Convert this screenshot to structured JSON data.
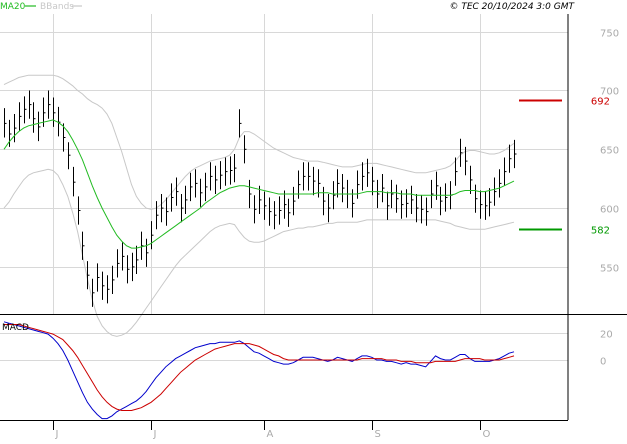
{
  "header": {
    "legend_ma": "MA20",
    "legend_bb": "BBands",
    "copyright": "© TEC 20/10/2024 3:0 GMT"
  },
  "colors": {
    "background": "#ffffff",
    "grid": "#d8d8d8",
    "frame": "#000000",
    "candle": "#000000",
    "ma20": "#22bb22",
    "bbands": "#c8c8c8",
    "resistance": "#cc0000",
    "support": "#009900",
    "macd_line": "#0000cc",
    "signal_line": "#cc0000",
    "axis_text": "#aaaaaa"
  },
  "chart_data": [
    {
      "type": "candlestick",
      "panel": "price",
      "y_ticks": [
        550,
        600,
        650,
        700,
        750
      ],
      "ylim": [
        510,
        765
      ],
      "grid": true,
      "x_labels": [
        {
          "label": "J",
          "index": 10
        },
        {
          "label": "J",
          "index": 30
        },
        {
          "label": "A",
          "index": 53
        },
        {
          "label": "S",
          "index": 75
        },
        {
          "label": "O",
          "index": 97
        }
      ],
      "close": [
        672,
        663,
        668,
        678,
        684,
        688,
        676,
        669,
        681,
        688,
        681,
        673,
        660,
        645,
        622,
        598,
        568,
        543,
        528,
        541,
        534,
        531,
        539,
        553,
        559,
        548,
        550,
        556,
        568,
        562,
        577,
        594,
        600,
        597,
        609,
        614,
        600,
        607,
        618,
        621,
        613,
        618,
        627,
        624,
        628,
        631,
        632,
        634,
        672,
        650,
        612,
        599,
        607,
        602,
        597,
        594,
        598,
        603,
        596,
        606,
        620,
        627,
        627,
        623,
        621,
        606,
        600,
        611,
        621,
        617,
        612,
        604,
        620,
        627,
        630,
        623,
        612,
        617,
        602,
        612,
        608,
        603,
        604,
        607,
        600,
        599,
        597,
        612,
        619,
        606,
        609,
        611,
        631,
        647,
        640,
        624,
        608,
        603,
        602,
        605,
        614,
        621,
        631,
        642,
        646
      ],
      "high": [
        685,
        675,
        680,
        690,
        695,
        700,
        690,
        682,
        694,
        700,
        694,
        686,
        672,
        656,
        635,
        610,
        580,
        555,
        540,
        553,
        546,
        543,
        551,
        565,
        571,
        560,
        562,
        568,
        580,
        574,
        589,
        606,
        612,
        609,
        621,
        626,
        612,
        619,
        630,
        633,
        625,
        630,
        639,
        636,
        640,
        643,
        644,
        646,
        684,
        662,
        624,
        611,
        619,
        614,
        609,
        606,
        610,
        615,
        608,
        618,
        632,
        639,
        639,
        635,
        633,
        618,
        612,
        623,
        633,
        629,
        624,
        616,
        632,
        639,
        642,
        635,
        624,
        629,
        614,
        624,
        620,
        615,
        616,
        619,
        612,
        611,
        609,
        624,
        631,
        618,
        621,
        623,
        643,
        659,
        652,
        636,
        620,
        615,
        614,
        617,
        626,
        633,
        643,
        654,
        658
      ],
      "low": [
        660,
        652,
        656,
        666,
        672,
        676,
        664,
        657,
        669,
        676,
        669,
        661,
        648,
        633,
        610,
        586,
        556,
        531,
        516,
        529,
        522,
        519,
        527,
        541,
        547,
        536,
        538,
        544,
        556,
        550,
        565,
        582,
        588,
        585,
        597,
        602,
        588,
        595,
        606,
        609,
        601,
        606,
        615,
        612,
        616,
        619,
        620,
        622,
        660,
        638,
        600,
        587,
        595,
        590,
        585,
        582,
        586,
        591,
        584,
        594,
        608,
        615,
        615,
        611,
        609,
        594,
        588,
        599,
        609,
        605,
        600,
        592,
        608,
        615,
        618,
        611,
        600,
        605,
        590,
        600,
        596,
        591,
        592,
        595,
        588,
        587,
        585,
        600,
        607,
        594,
        597,
        599,
        619,
        635,
        628,
        612,
        596,
        591,
        590,
        593,
        602,
        609,
        619,
        630,
        634
      ],
      "ma20": [
        650,
        656,
        661,
        665,
        668,
        670,
        671,
        672,
        673,
        674,
        675,
        673,
        670,
        665,
        658,
        650,
        641,
        630,
        619,
        609,
        600,
        592,
        584,
        577,
        572,
        568,
        566,
        566,
        567,
        568,
        570,
        573,
        576,
        579,
        582,
        585,
        588,
        591,
        594,
        597,
        600,
        604,
        607,
        610,
        613,
        615,
        617,
        618,
        619,
        619,
        618,
        617,
        616,
        615,
        614,
        613,
        612,
        612,
        612,
        612,
        612,
        612,
        612,
        612,
        613,
        613,
        613,
        612,
        612,
        612,
        612,
        612,
        612,
        613,
        614,
        614,
        614,
        614,
        613,
        613,
        613,
        612,
        612,
        612,
        611,
        611,
        611,
        611,
        611,
        611,
        611,
        611,
        612,
        614,
        615,
        615,
        615,
        614,
        614,
        615,
        616,
        617,
        619,
        621,
        623
      ],
      "bb_upper": [
        705,
        707,
        709,
        711,
        712,
        713,
        713,
        713,
        713,
        713,
        713,
        712,
        710,
        707,
        704,
        700,
        697,
        693,
        690,
        688,
        685,
        680,
        672,
        660,
        648,
        634,
        620,
        610,
        604,
        600,
        599,
        600,
        603,
        607,
        612,
        617,
        622,
        627,
        631,
        634,
        636,
        638,
        640,
        641,
        642,
        643,
        645,
        650,
        660,
        665,
        665,
        663,
        660,
        657,
        654,
        651,
        649,
        647,
        645,
        643,
        642,
        641,
        640,
        640,
        640,
        639,
        638,
        637,
        636,
        635,
        635,
        635,
        636,
        637,
        638,
        638,
        638,
        637,
        636,
        635,
        634,
        633,
        632,
        631,
        630,
        630,
        630,
        631,
        632,
        633,
        634,
        636,
        640,
        645,
        648,
        649,
        649,
        648,
        647,
        646,
        646,
        647,
        649,
        652,
        655
      ],
      "bb_lower": [
        600,
        605,
        612,
        618,
        624,
        628,
        630,
        631,
        632,
        633,
        632,
        628,
        620,
        610,
        596,
        580,
        560,
        540,
        522,
        508,
        500,
        495,
        492,
        491,
        492,
        494,
        498,
        503,
        509,
        515,
        521,
        527,
        533,
        539,
        545,
        551,
        556,
        560,
        564,
        568,
        572,
        576,
        580,
        583,
        585,
        586,
        587,
        586,
        580,
        575,
        572,
        571,
        571,
        572,
        574,
        576,
        578,
        580,
        581,
        582,
        583,
        583,
        584,
        584,
        585,
        586,
        587,
        587,
        588,
        588,
        588,
        588,
        588,
        589,
        590,
        590,
        590,
        590,
        590,
        590,
        590,
        590,
        590,
        590,
        590,
        590,
        590,
        590,
        590,
        589,
        588,
        587,
        585,
        584,
        583,
        582,
        582,
        582,
        582,
        583,
        584,
        585,
        586,
        587,
        588
      ],
      "levels": [
        {
          "label": "692",
          "value": 692,
          "kind": "resistance"
        },
        {
          "label": "582",
          "value": 582,
          "kind": "support"
        }
      ]
    },
    {
      "type": "line",
      "panel": "macd",
      "title": "MACD",
      "y_ticks": [
        {
          "label": "0",
          "value": 0
        },
        {
          "label": "20",
          "value": 20
        }
      ],
      "ylim": [
        -44,
        33
      ],
      "series": [
        {
          "role": "macd",
          "values": [
            28,
            27,
            26,
            25,
            24,
            23,
            22,
            21,
            20,
            19,
            16,
            12,
            7,
            0,
            -8,
            -16,
            -24,
            -31,
            -36,
            -40,
            -43,
            -43,
            -41,
            -38,
            -36,
            -34,
            -32,
            -30,
            -27,
            -23,
            -18,
            -13,
            -9,
            -5,
            -2,
            1,
            3,
            5,
            7,
            9,
            10,
            11,
            12,
            12,
            13,
            13,
            13,
            13,
            14,
            12,
            9,
            6,
            5,
            3,
            1,
            -1,
            -2,
            -3,
            -3,
            -2,
            0,
            2,
            2,
            2,
            1,
            0,
            -1,
            0,
            2,
            1,
            0,
            -1,
            1,
            3,
            3,
            2,
            0,
            0,
            -1,
            -1,
            -2,
            -3,
            -2,
            -3,
            -3,
            -4,
            -5,
            -1,
            3,
            1,
            0,
            0,
            2,
            4,
            4,
            1,
            -1,
            -1,
            -1,
            -1,
            0,
            1,
            3,
            5,
            6
          ]
        },
        {
          "role": "signal",
          "values": [
            26,
            26,
            26,
            26,
            25,
            24,
            23,
            22,
            21,
            20,
            19,
            17,
            15,
            11,
            7,
            2,
            -4,
            -10,
            -16,
            -22,
            -27,
            -31,
            -34,
            -36,
            -37,
            -37,
            -37,
            -36,
            -35,
            -33,
            -31,
            -28,
            -25,
            -21,
            -17,
            -13,
            -9,
            -6,
            -3,
            0,
            2,
            4,
            6,
            8,
            9,
            10,
            11,
            12,
            12,
            12,
            12,
            11,
            10,
            8,
            6,
            4,
            3,
            1,
            0,
            0,
            0,
            0,
            0,
            0,
            0,
            0,
            0,
            0,
            0,
            0,
            0,
            0,
            0,
            1,
            1,
            1,
            1,
            1,
            0,
            0,
            0,
            -1,
            -1,
            -1,
            -2,
            -2,
            -2,
            -2,
            -1,
            -1,
            -1,
            -1,
            -1,
            0,
            1,
            1,
            1,
            1,
            0,
            0,
            0,
            0,
            1,
            2,
            3
          ]
        }
      ]
    }
  ]
}
